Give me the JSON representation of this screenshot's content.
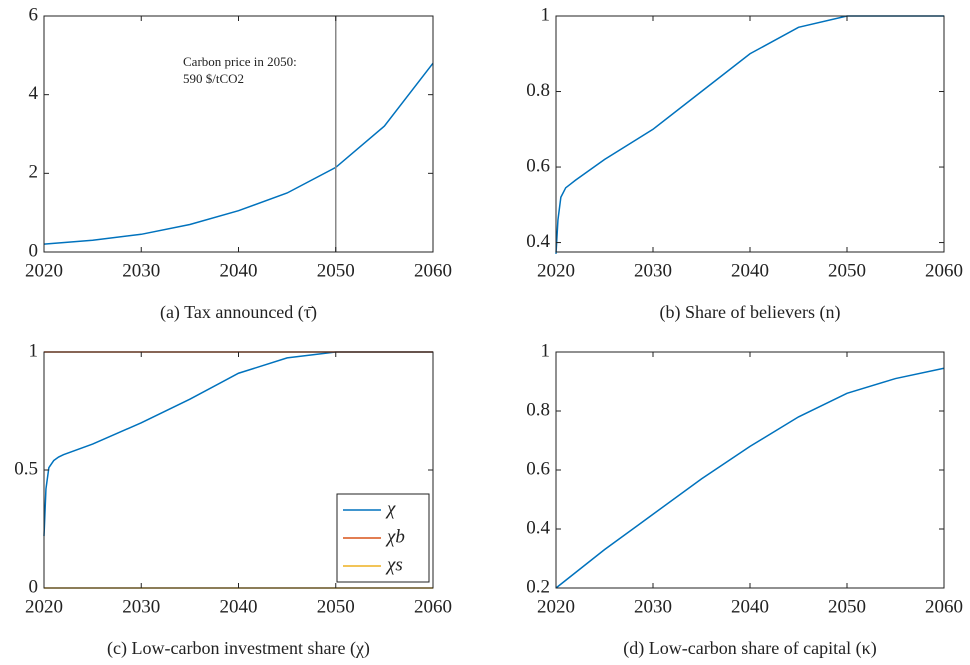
{
  "chart_data": [
    {
      "type": "line",
      "caption": "(a) Tax announced (τ̄)",
      "x": [
        2020,
        2025,
        2030,
        2035,
        2040,
        2045,
        2050,
        2055,
        2060
      ],
      "series": [
        {
          "name": "τ̄",
          "color": "#0072bd",
          "values": [
            0.2,
            0.3,
            0.45,
            0.7,
            1.05,
            1.5,
            2.15,
            3.2,
            4.8
          ]
        }
      ],
      "xlim": [
        2020,
        2060
      ],
      "xticks": [
        2020,
        2030,
        2040,
        2050,
        2060
      ],
      "ylim": [
        0,
        6
      ],
      "yticks": [
        0,
        2,
        4,
        6
      ],
      "vline": 2050,
      "annotation": [
        "Carbon price in 2050:",
        "590 $/tCO2"
      ]
    },
    {
      "type": "line",
      "caption": "(b) Share of believers (n)",
      "x": [
        2020,
        2020.2,
        2020.5,
        2021,
        2021.5,
        2022,
        2025,
        2030,
        2035,
        2040,
        2045,
        2050,
        2055,
        2060
      ],
      "series": [
        {
          "name": "n",
          "color": "#0072bd",
          "values": [
            0.37,
            0.46,
            0.52,
            0.545,
            0.555,
            0.565,
            0.62,
            0.7,
            0.8,
            0.9,
            0.97,
            1,
            1,
            1
          ]
        }
      ],
      "xlim": [
        2020,
        2060
      ],
      "xticks": [
        2020,
        2030,
        2040,
        2050,
        2060
      ],
      "ylim": [
        0.375,
        1
      ],
      "yticks": [
        0.4,
        0.6,
        0.8,
        1
      ]
    },
    {
      "type": "line",
      "caption": "(c) Low-carbon investment share (χ)",
      "x": [
        2020,
        2020.2,
        2020.5,
        2021,
        2021.5,
        2022,
        2025,
        2030,
        2035,
        2040,
        2045,
        2050,
        2055,
        2060
      ],
      "series": [
        {
          "name": "χ",
          "color": "#0072bd",
          "values": [
            0.22,
            0.42,
            0.51,
            0.54,
            0.555,
            0.565,
            0.61,
            0.7,
            0.8,
            0.91,
            0.975,
            1,
            1,
            1
          ]
        },
        {
          "name": "χb",
          "color": "#d95319",
          "values": [
            1,
            1,
            1,
            1,
            1,
            1,
            1,
            1,
            1,
            1,
            1,
            1,
            1,
            1
          ]
        },
        {
          "name": "χs",
          "color": "#edb120",
          "values": [
            0,
            0,
            0,
            0,
            0,
            0,
            0,
            0,
            0,
            0,
            0,
            0,
            0,
            0
          ]
        }
      ],
      "xlim": [
        2020,
        2060
      ],
      "xticks": [
        2020,
        2030,
        2040,
        2050,
        2060
      ],
      "ylim": [
        0,
        1
      ],
      "yticks": [
        0,
        0.5,
        1
      ],
      "legend": "southeast"
    },
    {
      "type": "line",
      "caption": "(d) Low-carbon share of capital (κ)",
      "x": [
        2020,
        2025,
        2030,
        2035,
        2040,
        2045,
        2050,
        2055,
        2060
      ],
      "series": [
        {
          "name": "κ",
          "color": "#0072bd",
          "values": [
            0.2,
            0.33,
            0.45,
            0.57,
            0.68,
            0.78,
            0.86,
            0.91,
            0.945
          ]
        }
      ],
      "xlim": [
        2020,
        2060
      ],
      "xticks": [
        2020,
        2030,
        2040,
        2050,
        2060
      ],
      "ylim": [
        0.2,
        1
      ],
      "yticks": [
        0.2,
        0.4,
        0.6,
        0.8,
        1
      ]
    }
  ]
}
